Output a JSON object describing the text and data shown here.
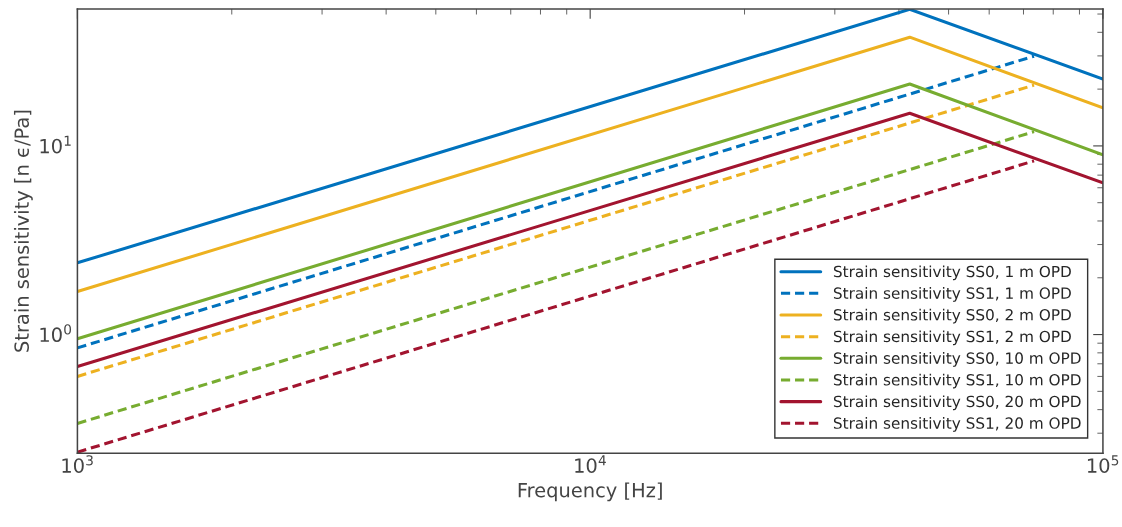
{
  "chart_data": {
    "type": "line",
    "xlabel": "Frequency [Hz]",
    "ylabel": "Strain sensitivity [n ϵ/Pa]",
    "log": "xy",
    "grid": false,
    "legend": "bottom right",
    "xlim": [
      1000,
      100000
    ],
    "ylim": [
      0.235,
      53.2
    ],
    "xticks": [
      {
        "value": 1000,
        "label": "10$^{3}$"
      },
      {
        "value": 10000,
        "label": "10$^{4}$"
      },
      {
        "value": 100000,
        "label": "10$^{5}$"
      }
    ],
    "yticks": [
      {
        "value": 1,
        "label": "10$^{0}$"
      },
      {
        "value": 10,
        "label": "10$^{1}$"
      }
    ],
    "series": [
      {
        "name": "Strain sensitivity SS0, 1 m OPD",
        "color": "#0072bd",
        "line_style": "solid",
        "x": [
          1000,
          42000,
          100000
        ],
        "values": [
          2.4,
          53,
          22.6
        ]
      },
      {
        "name": "Strain sensitivity SS1, 1 m OPD",
        "color": "#0072bd",
        "line_style": "dashed",
        "x": [
          1000,
          73400
        ],
        "values": [
          0.85,
          29.9
        ]
      },
      {
        "name": "Strain sensitivity SS0, 2 m OPD",
        "color": "#edb120",
        "line_style": "solid",
        "x": [
          1000,
          42000,
          100000
        ],
        "values": [
          1.69,
          37.7,
          15.9
        ]
      },
      {
        "name": "Strain sensitivity SS1, 2 m OPD",
        "color": "#edb120",
        "line_style": "dashed",
        "x": [
          1000,
          73400
        ],
        "values": [
          0.6,
          21.0
        ]
      },
      {
        "name": "Strain sensitivity SS0, 10 m OPD",
        "color": "#77ac30",
        "line_style": "solid",
        "x": [
          1000,
          42000,
          100000
        ],
        "values": [
          0.95,
          21.3,
          8.96
        ]
      },
      {
        "name": "Strain sensitivity SS1, 10 m OPD",
        "color": "#77ac30",
        "line_style": "dashed",
        "x": [
          1000,
          73400
        ],
        "values": [
          0.338,
          11.9
        ]
      },
      {
        "name": "Strain sensitivity SS0, 20 m OPD",
        "color": "#a2142f",
        "line_style": "solid",
        "x": [
          1000,
          42000,
          100000
        ],
        "values": [
          0.677,
          14.9,
          6.37
        ]
      },
      {
        "name": "Strain sensitivity SS1, 20 m OPD",
        "color": "#a2142f",
        "line_style": "dashed",
        "x": [
          1000,
          73400
        ],
        "values": [
          0.238,
          8.33
        ]
      }
    ]
  }
}
